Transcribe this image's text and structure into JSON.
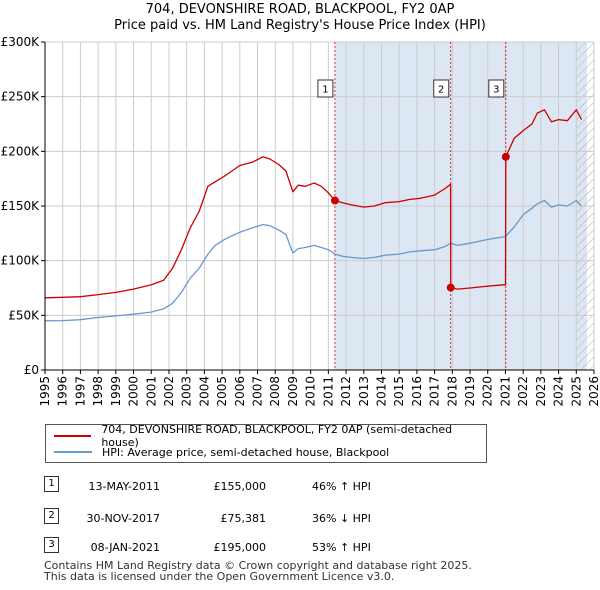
{
  "title_line1": "704, DEVONSHIRE ROAD, BLACKPOOL, FY2 0AP",
  "title_line2": "Price paid vs. HM Land Registry's House Price Index (HPI)",
  "colors": {
    "property": "#cc0000",
    "hpi": "#6699cc",
    "shade": "#dde6f3",
    "grid": "#cccccc"
  },
  "chart_data": {
    "type": "line",
    "title": "704, DEVONSHIRE ROAD, BLACKPOOL, FY2 0AP — Price paid vs. HM Land Registry's House Price Index (HPI)",
    "xlabel": "",
    "ylabel": "",
    "xlim": [
      1995,
      2026
    ],
    "ylim": [
      0,
      300000
    ],
    "y_ticks": [
      0,
      50000,
      100000,
      150000,
      200000,
      250000,
      300000
    ],
    "y_tick_labels": [
      "£0",
      "£50K",
      "£100K",
      "£150K",
      "£200K",
      "£250K",
      "£300K"
    ],
    "x_ticks": [
      1995,
      1996,
      1997,
      1998,
      1999,
      2000,
      2001,
      2002,
      2003,
      2004,
      2005,
      2006,
      2007,
      2008,
      2009,
      2010,
      2011,
      2012,
      2013,
      2014,
      2015,
      2016,
      2017,
      2018,
      2019,
      2020,
      2021,
      2022,
      2023,
      2024,
      2025,
      2026
    ],
    "x_tick_labels": [
      "1995",
      "1996",
      "1997",
      "1998",
      "1999",
      "2000",
      "2001",
      "2002",
      "2003",
      "2004",
      "2005",
      "2006",
      "2007",
      "2008",
      "2009",
      "2010",
      "2011",
      "2012",
      "2013",
      "2014",
      "2015",
      "2016",
      "2017",
      "2018",
      "2019",
      "2020",
      "2021",
      "2022",
      "2023",
      "2024",
      "2025",
      "2026"
    ],
    "grid": true,
    "shaded_range": [
      2011.37,
      2025.6
    ],
    "hatched_range": [
      2025.0,
      2026
    ],
    "series": [
      {
        "name": "704, DEVONSHIRE ROAD, BLACKPOOL, FY2 0AP (semi-detached house)",
        "x": [
          1995,
          1996,
          1997,
          1998,
          1999,
          2000,
          2001,
          2001.7,
          2002.2,
          2002.7,
          2003.2,
          2003.7,
          2004.2,
          2004.6,
          2005.2,
          2006,
          2006.7,
          2007.3,
          2007.7,
          2008.2,
          2008.6,
          2009,
          2009.3,
          2009.7,
          2010.2,
          2010.6,
          2011.0,
          2011.37,
          2011.8,
          2012.3,
          2013,
          2013.6,
          2014.2,
          2015,
          2015.6,
          2016.2,
          2017.0,
          2017.6,
          2017.9,
          2017.91,
          2018.3,
          2019,
          2019.6,
          2020.2,
          2021.0,
          2021.02,
          2021.5,
          2022.0,
          2022.5,
          2022.8,
          2023.2,
          2023.6,
          2024.0,
          2024.5,
          2025.0,
          2025.3
        ],
        "values": [
          66000,
          66500,
          67000,
          69000,
          71000,
          74000,
          78000,
          82000,
          93000,
          110000,
          130000,
          145000,
          168000,
          172000,
          178000,
          187000,
          190000,
          195000,
          193000,
          188000,
          182000,
          163000,
          169000,
          168000,
          171000,
          168000,
          162000,
          155000,
          153000,
          151000,
          149000,
          150000,
          153000,
          154000,
          156000,
          157000,
          160000,
          166000,
          170000,
          75381,
          74000,
          75000,
          76000,
          77000,
          78000,
          195000,
          212000,
          219000,
          225000,
          235000,
          238000,
          227000,
          229000,
          228000,
          238000,
          229000
        ]
      },
      {
        "name": "HPI: Average price, semi-detached house, Blackpool",
        "x": [
          1995,
          1996,
          1997,
          1998,
          1999,
          2000,
          2001,
          2001.7,
          2002.2,
          2002.7,
          2003.2,
          2003.7,
          2004.2,
          2004.6,
          2005.2,
          2006,
          2006.7,
          2007.3,
          2007.7,
          2008.2,
          2008.6,
          2009,
          2009.3,
          2009.7,
          2010.2,
          2010.6,
          2011.0,
          2011.37,
          2011.8,
          2012.3,
          2013,
          2013.6,
          2014.2,
          2015,
          2015.6,
          2016.2,
          2017.0,
          2017.6,
          2017.9,
          2018.3,
          2019,
          2019.6,
          2020.2,
          2021.0,
          2021.5,
          2022.0,
          2022.5,
          2022.8,
          2023.2,
          2023.6,
          2024.0,
          2024.5,
          2025.0,
          2025.3
        ],
        "values": [
          45000,
          45200,
          46000,
          48000,
          49500,
          51000,
          53000,
          56000,
          61000,
          71000,
          84000,
          93000,
          106000,
          114000,
          120000,
          126000,
          130000,
          133000,
          132000,
          128000,
          124000,
          107000,
          111000,
          112000,
          114000,
          112000,
          110000,
          106000,
          104000,
          103000,
          102000,
          103000,
          105000,
          106000,
          108000,
          109000,
          110000,
          113000,
          116000,
          114000,
          116000,
          118000,
          120000,
          122000,
          131000,
          142000,
          148000,
          152000,
          155000,
          149000,
          151000,
          150000,
          155000,
          150000
        ]
      }
    ],
    "sales": [
      {
        "label": "1",
        "date": "13-MAY-2011",
        "year": 2011.37,
        "price": 155000,
        "price_text": "£155,000",
        "hpi_change": "46% ↑ HPI"
      },
      {
        "label": "2",
        "date": "30-NOV-2017",
        "year": 2017.91,
        "price": 75381,
        "price_text": "£75,381",
        "hpi_change": "36% ↓ HPI"
      },
      {
        "label": "3",
        "date": "08-JAN-2021",
        "year": 2021.02,
        "price": 195000,
        "price_text": "£195,000",
        "hpi_change": "53% ↑ HPI"
      }
    ],
    "legend": [
      "704, DEVONSHIRE ROAD, BLACKPOOL, FY2 0AP (semi-detached house)",
      "HPI: Average price, semi-detached house, Blackpool"
    ]
  },
  "footer_line1": "Contains HM Land Registry data © Crown copyright and database right 2025.",
  "footer_line2": "This data is licensed under the Open Government Licence v3.0."
}
